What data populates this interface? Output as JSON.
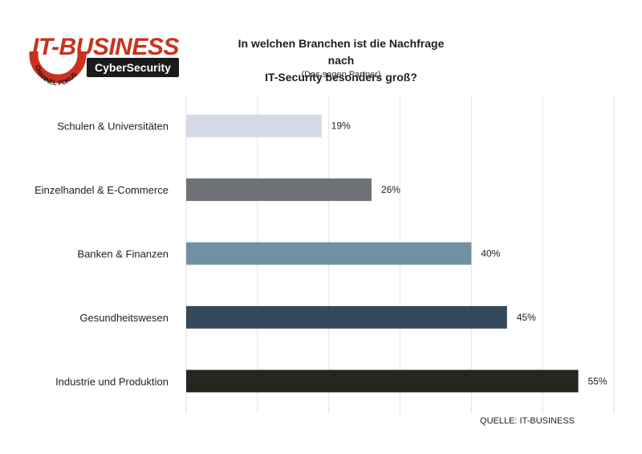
{
  "logo": {
    "main": "IT-BUSINESS",
    "arc": "CHANNEL FOKUS",
    "sub": "CyberSecurity",
    "colors": {
      "red": "#c8321e",
      "dark": "#1a1a1a"
    }
  },
  "chart_data": {
    "type": "bar",
    "orientation": "horizontal",
    "title": "In welchen Branchen ist die Nachfrage nach IT-Security besonders groß?",
    "title_lines": [
      "In welchen Branchen ist die Nachfrage nach",
      "IT-Security besonders groß?"
    ],
    "subtitle": "(Das sagen Partner)",
    "categories": [
      "Schulen & Universitäten",
      "Einzelhandel & E-Commerce",
      "Banken & Finanzen",
      "Gesundheitswesen",
      "Industrie und Produktion"
    ],
    "values": [
      19,
      26,
      40,
      45,
      55
    ],
    "value_labels": [
      "19%",
      "26%",
      "40%",
      "45%",
      "55%"
    ],
    "colors": [
      "#d4d9e8",
      "#6e7278",
      "#7091a3",
      "#36495a",
      "#26261f"
    ],
    "xlim": [
      0,
      60
    ],
    "grid": true,
    "source": "QUELLE: IT-BUSINESS"
  }
}
